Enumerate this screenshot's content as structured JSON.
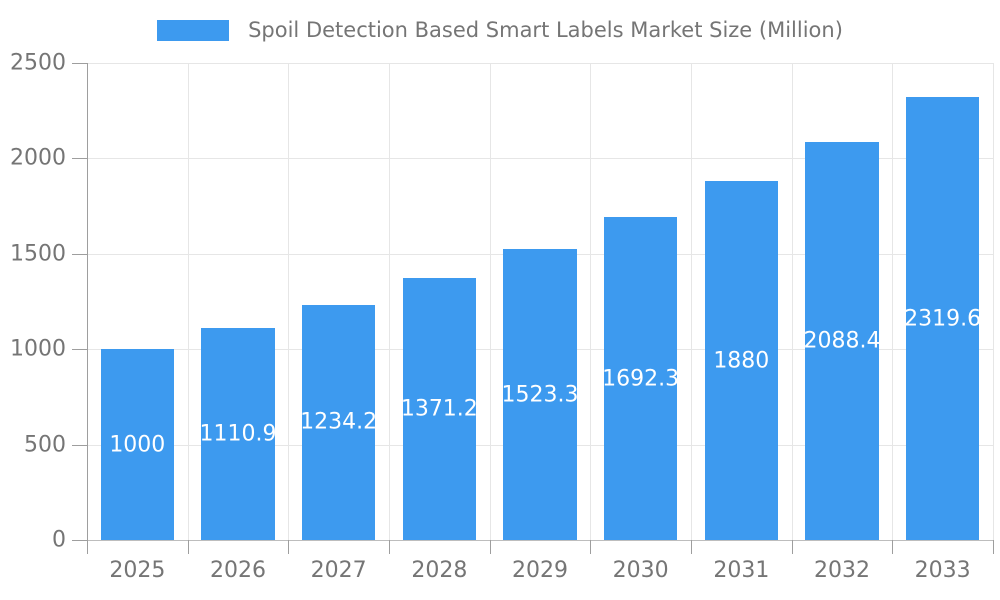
{
  "legend": {
    "label": "Spoil Detection Based Smart Labels Market Size (Million)"
  },
  "chart_data": {
    "type": "bar",
    "title": "Spoil Detection Based Smart Labels Market Size (Million)",
    "categories": [
      "2025",
      "2026",
      "2027",
      "2028",
      "2029",
      "2030",
      "2031",
      "2032",
      "2033"
    ],
    "values": [
      1000,
      1110.9,
      1234.2,
      1371.2,
      1523.3,
      1692.3,
      1880,
      2088.4,
      2319.6
    ],
    "value_labels": [
      "1000",
      "1110.9",
      "1234.2",
      "1371.2",
      "1523.3",
      "1692.3",
      "1880",
      "2088.4",
      "2319.6"
    ],
    "xlabel": "",
    "ylabel": "",
    "ylim": [
      0,
      2500
    ],
    "yticks": [
      0,
      500,
      1000,
      1500,
      2000,
      2500
    ],
    "grid": true,
    "legend_position": "top",
    "bar_label_position": "center-inside"
  },
  "colors": {
    "bar": "#3d9aef",
    "bar_label": "#ffffff",
    "axis_text": "#757575",
    "title_text": "#757575",
    "gridline": "#e6e6e6",
    "axis_line": "#9e9e9e",
    "background": "#ffffff"
  }
}
